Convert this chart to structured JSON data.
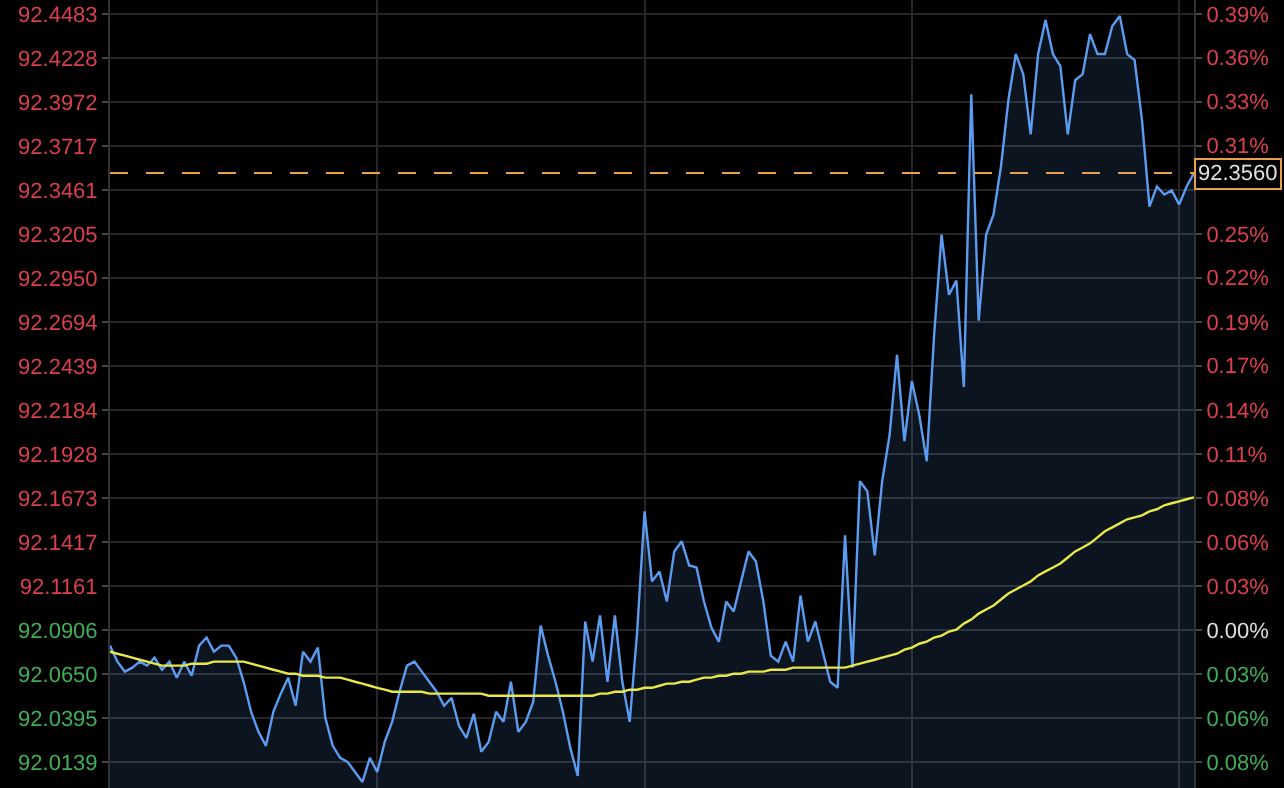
{
  "chart_data": {
    "type": "area",
    "categories": [
      null,
      null,
      null,
      null,
      null,
      null,
      null,
      null,
      null,
      null,
      null,
      null,
      null,
      null,
      null,
      null,
      null,
      null,
      null,
      null,
      null,
      null,
      null,
      null,
      null,
      null,
      null,
      null,
      null,
      null,
      null,
      null,
      null,
      null,
      null,
      null,
      null,
      null,
      null,
      null,
      null,
      null,
      null,
      null,
      null,
      null,
      null,
      null,
      null,
      null,
      null,
      null,
      null,
      null,
      null,
      null,
      null,
      null,
      null,
      null,
      null,
      null,
      null,
      null,
      null,
      null,
      null,
      null,
      null,
      null,
      null,
      null,
      null,
      null,
      null,
      null,
      null,
      null,
      null,
      null,
      null,
      null,
      null,
      null,
      null,
      null,
      null,
      null,
      null,
      null,
      null,
      null,
      null,
      null,
      null,
      null,
      null,
      null,
      null,
      null,
      null,
      null,
      null,
      null,
      null,
      null,
      null,
      null,
      null,
      null,
      null,
      null,
      null,
      null,
      null,
      null,
      null,
      null,
      null,
      null,
      null,
      null,
      null,
      null,
      null,
      null,
      null,
      null,
      null,
      null,
      null,
      null,
      null,
      null,
      null,
      null,
      null,
      null,
      null,
      null,
      null,
      null,
      null,
      null,
      null,
      null,
      null
    ],
    "series": [
      {
        "color": "#5b9cf0",
        "values": [
          92.0815,
          92.0722,
          92.0664,
          92.0687,
          92.0722,
          92.0699,
          92.0745,
          92.0675,
          92.0722,
          92.0629,
          92.0722,
          92.064,
          92.0815,
          92.0862,
          92.078,
          92.0815,
          92.0815,
          92.0745,
          92.0605,
          92.0431,
          92.0314,
          92.0233,
          92.0431,
          92.0536,
          92.0629,
          92.0466,
          92.078,
          92.0722,
          92.0803,
          92.0396,
          92.0233,
          92.0163,
          92.014,
          92.0081,
          92.0023,
          92.0163,
          92.0081,
          92.0256,
          92.0372,
          92.0547,
          92.0699,
          92.0722,
          92.0664,
          92.0605,
          92.0547,
          92.0466,
          92.0512,
          92.0349,
          92.0279,
          92.0419,
          92.0198,
          92.0256,
          92.0431,
          92.0372,
          92.0605,
          92.0314,
          92.0372,
          92.0489,
          92.0931,
          92.0757,
          92.0605,
          92.0431,
          92.0221,
          92.0058,
          92.0955,
          92.0722,
          92.099,
          92.0605,
          92.099,
          92.0605,
          92.0372,
          92.0897,
          92.1595,
          92.1188,
          92.1246,
          92.1071,
          92.1362,
          92.1421,
          92.1281,
          92.1269,
          92.1071,
          92.092,
          92.0838,
          92.1071,
          92.1013,
          92.1188,
          92.1362,
          92.1304,
          92.1071,
          92.0757,
          92.0722,
          92.0838,
          92.0722,
          92.1106,
          92.0838,
          92.0955,
          92.078,
          92.0605,
          92.057,
          92.1456,
          92.0687,
          92.177,
          92.1712,
          92.1339,
          92.177,
          92.2038,
          92.2504,
          92.2003,
          92.2352,
          92.2154,
          92.1886,
          92.262,
          92.3202,
          92.2853,
          92.2935,
          92.2317,
          92.4018,
          92.2702,
          92.3202,
          92.3319,
          92.3598,
          92.3983,
          92.4251,
          92.4134,
          92.3785,
          92.4251,
          92.4449,
          92.4251,
          92.4181,
          92.3785,
          92.4099,
          92.4134,
          92.4367,
          92.4251,
          92.4251,
          92.4414,
          92.4472,
          92.4251,
          92.4216,
          92.3866,
          92.3365,
          92.3482,
          92.3435,
          92.3459,
          92.3377,
          92.3482,
          92.356
        ]
      },
      {
        "type": "line",
        "color": "#e8e84a",
        "values": [
          92.078,
          92.0768,
          92.0757,
          92.0745,
          92.0733,
          92.0722,
          92.071,
          92.0699,
          92.0699,
          92.0699,
          92.0699,
          92.071,
          92.071,
          92.071,
          92.0722,
          92.0722,
          92.0722,
          92.0722,
          92.0722,
          92.071,
          92.0699,
          92.0687,
          92.0675,
          92.0664,
          92.0652,
          92.0652,
          92.064,
          92.064,
          92.064,
          92.0629,
          92.0629,
          92.0629,
          92.0617,
          92.0605,
          92.0594,
          92.0582,
          92.057,
          92.0559,
          92.0547,
          92.0547,
          92.0547,
          92.0547,
          92.0547,
          92.0536,
          92.0536,
          92.0536,
          92.0536,
          92.0536,
          92.0536,
          92.0536,
          92.0536,
          92.0524,
          92.0524,
          92.0524,
          92.0524,
          92.0524,
          92.0524,
          92.0524,
          92.0524,
          92.0524,
          92.0524,
          92.0524,
          92.0524,
          92.0524,
          92.0524,
          92.0524,
          92.0536,
          92.0536,
          92.0547,
          92.0547,
          92.0559,
          92.0559,
          92.057,
          92.057,
          92.0582,
          92.0594,
          92.0594,
          92.0605,
          92.0605,
          92.0617,
          92.0629,
          92.0629,
          92.064,
          92.064,
          92.0652,
          92.0652,
          92.0664,
          92.0664,
          92.0664,
          92.0675,
          92.0675,
          92.0675,
          92.0687,
          92.0687,
          92.0687,
          92.0687,
          92.0687,
          92.0687,
          92.0687,
          92.0687,
          92.0699,
          92.071,
          92.0722,
          92.0733,
          92.0745,
          92.0757,
          92.0768,
          92.0792,
          92.0803,
          92.0826,
          92.0838,
          92.0862,
          92.0873,
          92.0897,
          92.0908,
          92.0943,
          92.0966,
          92.1001,
          92.1025,
          92.1048,
          92.1083,
          92.1118,
          92.1141,
          92.1164,
          92.1188,
          92.1223,
          92.1246,
          92.1269,
          92.1292,
          92.1327,
          92.1362,
          92.1385,
          92.1409,
          92.1444,
          92.1479,
          92.1502,
          92.1525,
          92.1549,
          92.156,
          92.1572,
          92.1595,
          92.1607,
          92.163,
          92.1642,
          92.1653,
          92.1665,
          92.1676
        ]
      }
    ],
    "ylim": [
      91.9988,
      92.4565
    ],
    "yticks": [
      92.4483,
      92.4228,
      92.3972,
      92.3717,
      92.3461,
      92.3205,
      {
        "value": 92.295,
        "label": "92.2950"
      },
      92.2694,
      92.2439,
      92.2184,
      92.1928,
      92.1673,
      92.1417,
      92.1161,
      92.0906,
      {
        "value": 92.065,
        "label": "92.0650"
      },
      92.0395,
      92.0139
    ],
    "y2lim": [
      -0.0997,
      0.3973
    ],
    "y2ticks": [
      {
        "value": 0.3886,
        "label": "0.39%"
      },
      {
        "value": 0.3609,
        "label": "0.36%"
      },
      {
        "value": 0.3331,
        "label": "0.33%"
      },
      {
        "value": 0.3054,
        "label": "0.31%"
      },
      {
        "value": 0.2498,
        "label": "0.25%"
      },
      {
        "value": 0.2221,
        "label": "0.22%"
      },
      {
        "value": 0.1943,
        "label": "0.19%"
      },
      {
        "value": 0.1666,
        "label": "0.17%"
      },
      {
        "value": 0.1388,
        "label": "0.14%"
      },
      {
        "value": 0.111,
        "label": "0.11%"
      },
      {
        "value": 0.0833,
        "label": "0.08%"
      },
      {
        "value": 0.0555,
        "label": "0.06%"
      },
      {
        "value": 0.0278,
        "label": "0.03%"
      },
      {
        "value": 0,
        "label": "0.00%"
      },
      {
        "value": -0.0278,
        "label": "0.03%"
      },
      {
        "value": -0.0555,
        "label": "0.06%"
      },
      {
        "value": -0.0833,
        "label": "0.08%"
      }
    ],
    "ref_lines": [
      {
        "axis": "y",
        "value": 92.356,
        "label": "92.3560",
        "color": "#e8a04a",
        "line_style": "dashed"
      }
    ],
    "grid": true,
    "legend": false,
    "marker": "none",
    "tick_labels": "y"
  }
}
